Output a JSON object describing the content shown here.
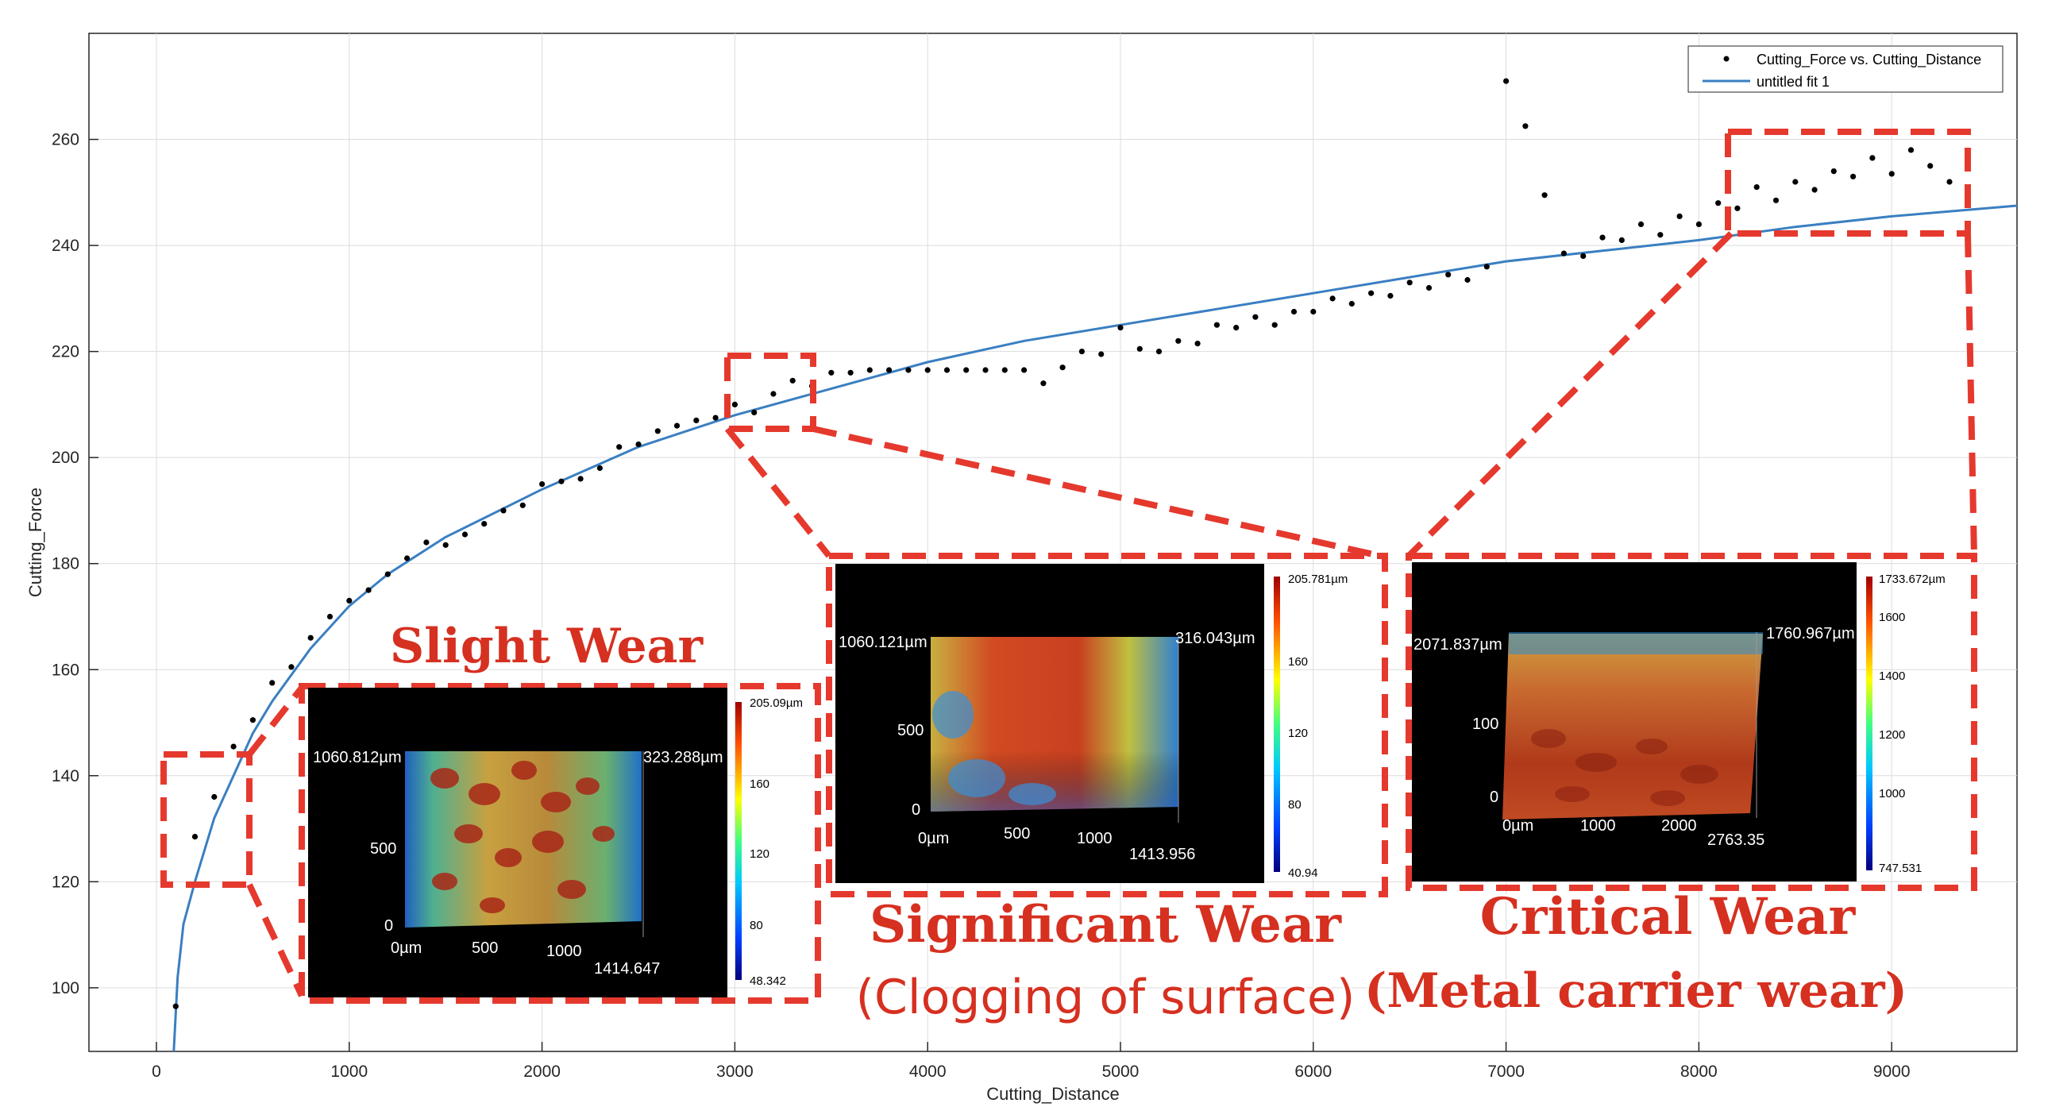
{
  "chart_data": {
    "type": "scatter",
    "title": "",
    "xlabel": "Cutting_Distance",
    "ylabel": "Cutting_Force",
    "xlim": [
      -350,
      9650
    ],
    "ylim": [
      88,
      280
    ],
    "x_ticks": [
      0,
      1000,
      2000,
      3000,
      4000,
      5000,
      6000,
      7000,
      8000,
      9000
    ],
    "y_ticks": [
      100,
      120,
      140,
      160,
      180,
      200,
      220,
      240,
      260
    ],
    "grid": true,
    "legend": {
      "placement": "top-right",
      "entries": [
        "Cutting_Force vs. Cutting_Distance",
        "untitled fit 1"
      ]
    },
    "series": [
      {
        "name": "Cutting_Force vs. Cutting_Distance",
        "type": "scatter",
        "color": "#000000",
        "points": [
          [
            100,
            96.5
          ],
          [
            200,
            128.5
          ],
          [
            300,
            136
          ],
          [
            400,
            145.5
          ],
          [
            500,
            150.5
          ],
          [
            600,
            157.5
          ],
          [
            700,
            160.5
          ],
          [
            800,
            166
          ],
          [
            900,
            170
          ],
          [
            1000,
            173
          ],
          [
            1100,
            175
          ],
          [
            1200,
            178
          ],
          [
            1300,
            181
          ],
          [
            1400,
            184
          ],
          [
            1500,
            183.5
          ],
          [
            1600,
            185.5
          ],
          [
            1700,
            187.5
          ],
          [
            1800,
            190
          ],
          [
            1900,
            191
          ],
          [
            2000,
            195
          ],
          [
            2100,
            195.5
          ],
          [
            2200,
            196
          ],
          [
            2300,
            198
          ],
          [
            2400,
            202
          ],
          [
            2500,
            202.5
          ],
          [
            2600,
            205
          ],
          [
            2700,
            206
          ],
          [
            2800,
            207
          ],
          [
            2900,
            207.5
          ],
          [
            3000,
            210
          ],
          [
            3100,
            208.5
          ],
          [
            3200,
            212
          ],
          [
            3300,
            214.5
          ],
          [
            3400,
            213.5
          ],
          [
            3500,
            216
          ],
          [
            3600,
            216
          ],
          [
            3700,
            216.5
          ],
          [
            3800,
            216.5
          ],
          [
            3900,
            216.5
          ],
          [
            4000,
            216.5
          ],
          [
            4100,
            216.5
          ],
          [
            4200,
            216.5
          ],
          [
            4300,
            216.5
          ],
          [
            4400,
            216.5
          ],
          [
            4500,
            216.5
          ],
          [
            4600,
            214
          ],
          [
            4700,
            217
          ],
          [
            4800,
            220
          ],
          [
            4900,
            219.5
          ],
          [
            5000,
            224.5
          ],
          [
            5100,
            220.5
          ],
          [
            5200,
            220
          ],
          [
            5300,
            222
          ],
          [
            5400,
            221.5
          ],
          [
            5500,
            225
          ],
          [
            5600,
            224.5
          ],
          [
            5700,
            226.5
          ],
          [
            5800,
            225
          ],
          [
            5900,
            227.5
          ],
          [
            6000,
            227.5
          ],
          [
            6100,
            230
          ],
          [
            6200,
            229
          ],
          [
            6300,
            231
          ],
          [
            6400,
            230.5
          ],
          [
            6500,
            233
          ],
          [
            6600,
            232
          ],
          [
            6700,
            234.5
          ],
          [
            6800,
            233.5
          ],
          [
            6900,
            236
          ],
          [
            7000,
            271
          ],
          [
            7100,
            262.5
          ],
          [
            7200,
            249.5
          ],
          [
            7300,
            238.5
          ],
          [
            7400,
            238
          ],
          [
            7500,
            241.5
          ],
          [
            7600,
            241
          ],
          [
            7700,
            244
          ],
          [
            7800,
            242
          ],
          [
            7900,
            245.5
          ],
          [
            8000,
            244
          ],
          [
            8100,
            248
          ],
          [
            8200,
            247
          ],
          [
            8300,
            251
          ],
          [
            8400,
            248.5
          ],
          [
            8500,
            252
          ],
          [
            8600,
            250.5
          ],
          [
            8700,
            254
          ],
          [
            8800,
            253
          ],
          [
            8900,
            256.5
          ],
          [
            9000,
            253.5
          ],
          [
            9100,
            258
          ],
          [
            9200,
            255
          ],
          [
            9300,
            252
          ]
        ]
      },
      {
        "name": "untitled fit 1",
        "type": "line",
        "color": "#3a7fc1",
        "points": [
          [
            90,
            88
          ],
          [
            110,
            102
          ],
          [
            140,
            112
          ],
          [
            200,
            120
          ],
          [
            300,
            132
          ],
          [
            400,
            140
          ],
          [
            500,
            148
          ],
          [
            600,
            154
          ],
          [
            700,
            159
          ],
          [
            800,
            164
          ],
          [
            1000,
            172
          ],
          [
            1200,
            178
          ],
          [
            1500,
            185
          ],
          [
            2000,
            194
          ],
          [
            2500,
            202
          ],
          [
            3000,
            208
          ],
          [
            3500,
            213
          ],
          [
            4000,
            218
          ],
          [
            4500,
            222
          ],
          [
            5000,
            225
          ],
          [
            5500,
            228
          ],
          [
            6000,
            231
          ],
          [
            6500,
            234
          ],
          [
            7000,
            237
          ],
          [
            7500,
            239
          ],
          [
            8000,
            241
          ],
          [
            8500,
            243.5
          ],
          [
            9000,
            245.5
          ],
          [
            9650,
            247.5
          ]
        ]
      }
    ],
    "annotations": {
      "slight": {
        "title": "Slight Wear",
        "sub": "",
        "inset": {
          "top_label": "1060.812µm",
          "top_right_label": "323.288µm",
          "y_ticks": [
            "500",
            "0"
          ],
          "x_ticks": [
            "0µm",
            "500",
            "1000",
            "1414.647"
          ],
          "colorbar": [
            "205.09µm",
            "160",
            "120",
            "80",
            "48.342"
          ]
        }
      },
      "significant": {
        "title": "Significant Wear",
        "sub": "(Clogging of surface)",
        "inset": {
          "top_label": "1060.121µm",
          "top_right_label": "316.043µm",
          "y_ticks": [
            "500",
            "0"
          ],
          "x_ticks": [
            "0µm",
            "500",
            "1000",
            "1413.956"
          ],
          "colorbar": [
            "205.781µm",
            "160",
            "120",
            "80",
            "40.94"
          ]
        }
      },
      "critical": {
        "title": "Critical Wear",
        "sub": "(Metal carrier wear)",
        "inset": {
          "top_label": "2071.837µm",
          "top_right_label": "1760.967µm",
          "y_ticks": [
            "100",
            "0"
          ],
          "x_ticks": [
            "0µm",
            "1000",
            "2000",
            "2763.35"
          ],
          "colorbar": [
            "1733.672µm",
            "1600",
            "1400",
            "1200",
            "1000",
            "747.531"
          ]
        }
      }
    },
    "colors": {
      "fit": "#3a7fc1",
      "points": "#000000",
      "callout": "#e5392e",
      "grid": "#dcdcdc"
    }
  }
}
